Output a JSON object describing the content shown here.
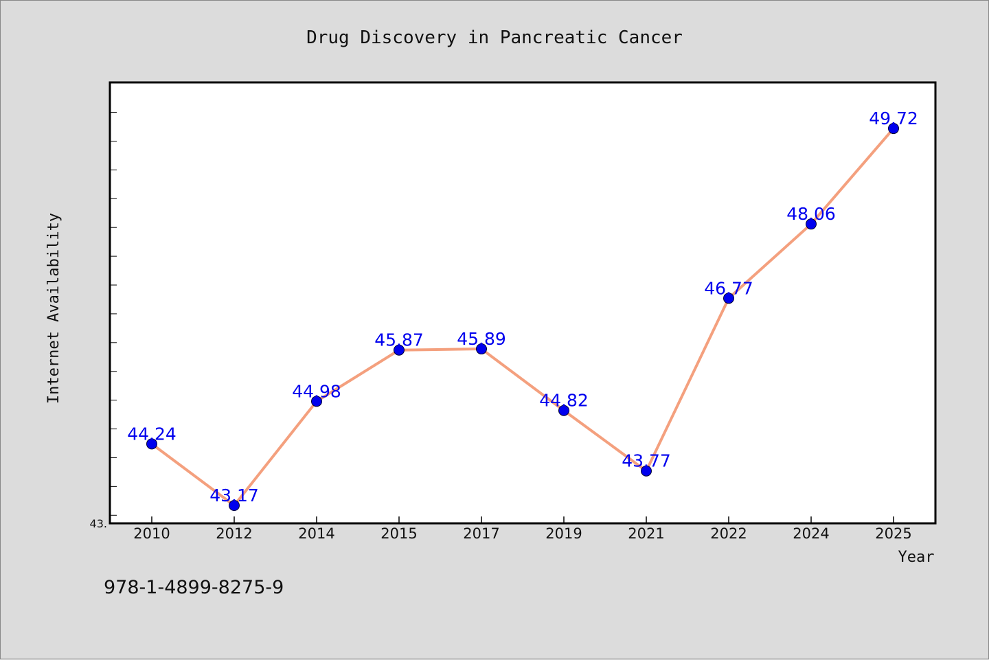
{
  "isbn": "978-1-4899-8275-9",
  "colors": {
    "background": "#dcdcdc",
    "plot_background": "#ffffff",
    "line": "#f4a07e",
    "marker": "#0000ee",
    "data_label": "#0000ee"
  },
  "chart_data": {
    "type": "line",
    "title": "Drug Discovery in Pancreatic Cancer",
    "xlabel": "Year",
    "ylabel": "Internet Availability",
    "categories": [
      "2010",
      "2012",
      "2014",
      "2015",
      "2017",
      "2019",
      "2021",
      "2022",
      "2024",
      "2025"
    ],
    "series": [
      {
        "values": [
          44.24,
          43.17,
          44.98,
          45.87,
          45.89,
          44.82,
          43.77,
          46.77,
          48.06,
          49.72
        ],
        "labels": [
          "44.24",
          "43.17",
          "44.98",
          "45.87",
          "45.89",
          "44.82",
          "43.77",
          "46.77",
          "48.06",
          "49.72"
        ]
      }
    ],
    "ylim": [
      42.86,
      50.52
    ],
    "y_tick_labels": [
      {
        "value": 42.86,
        "label": "43."
      }
    ],
    "y_minor_tick_step": 0.5,
    "grid": false,
    "legend": "none"
  }
}
